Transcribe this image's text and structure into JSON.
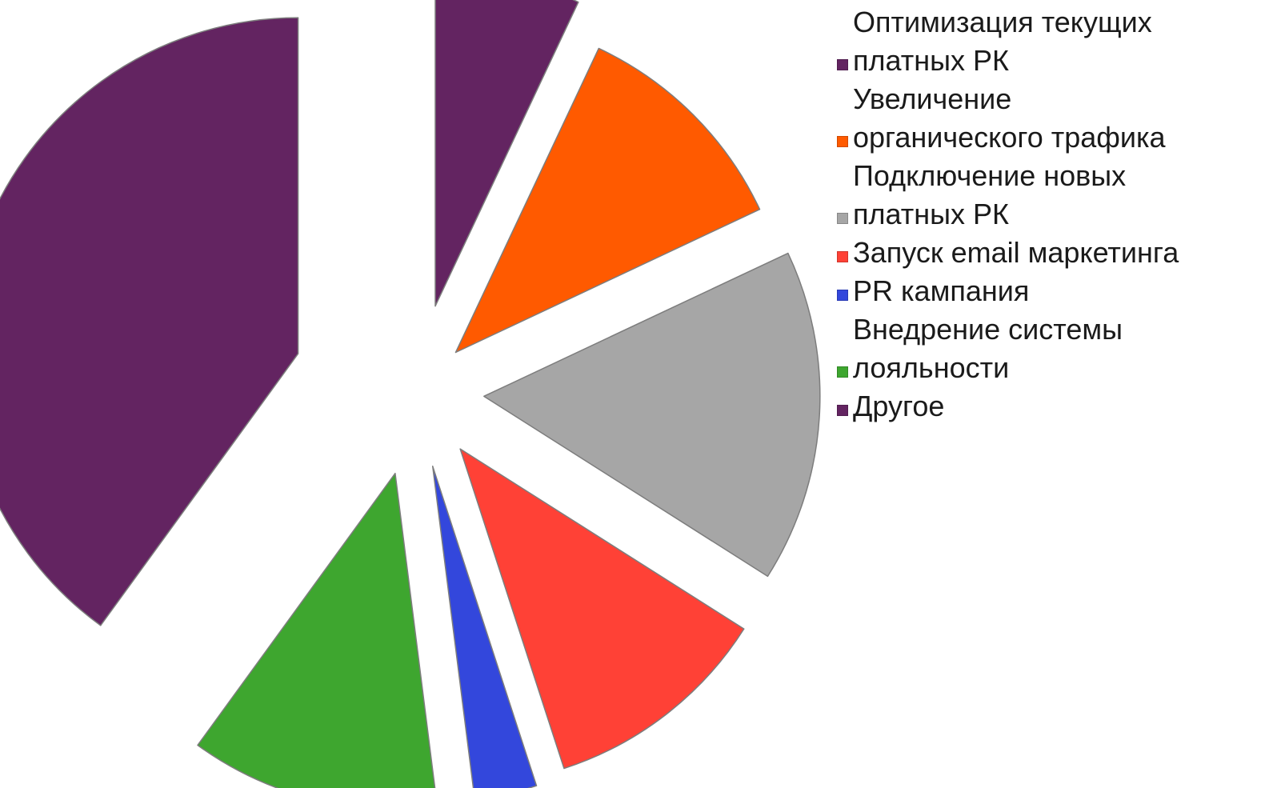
{
  "chart_data": {
    "type": "pie",
    "title": "",
    "legend_position": "right",
    "slices": [
      {
        "label": "Оптимизация текущих\nплатных РК",
        "value": 7,
        "color": "#632461"
      },
      {
        "label": "Увеличение\nорганического трафика",
        "value": 11,
        "color": "#ff5a00"
      },
      {
        "label": "Подключение новых\nплатных РК",
        "value": 16,
        "color": "#a6a6a6"
      },
      {
        "label": "Запуск email маркетинга",
        "value": 11,
        "color": "#ff4136"
      },
      {
        "label": "PR кампания",
        "value": 3,
        "color": "#3347dc"
      },
      {
        "label": "Внедрение системы\nлояльности",
        "value": 12,
        "color": "#3ea62f"
      },
      {
        "label": "Другое",
        "value": 40,
        "color": "#632461"
      }
    ]
  }
}
